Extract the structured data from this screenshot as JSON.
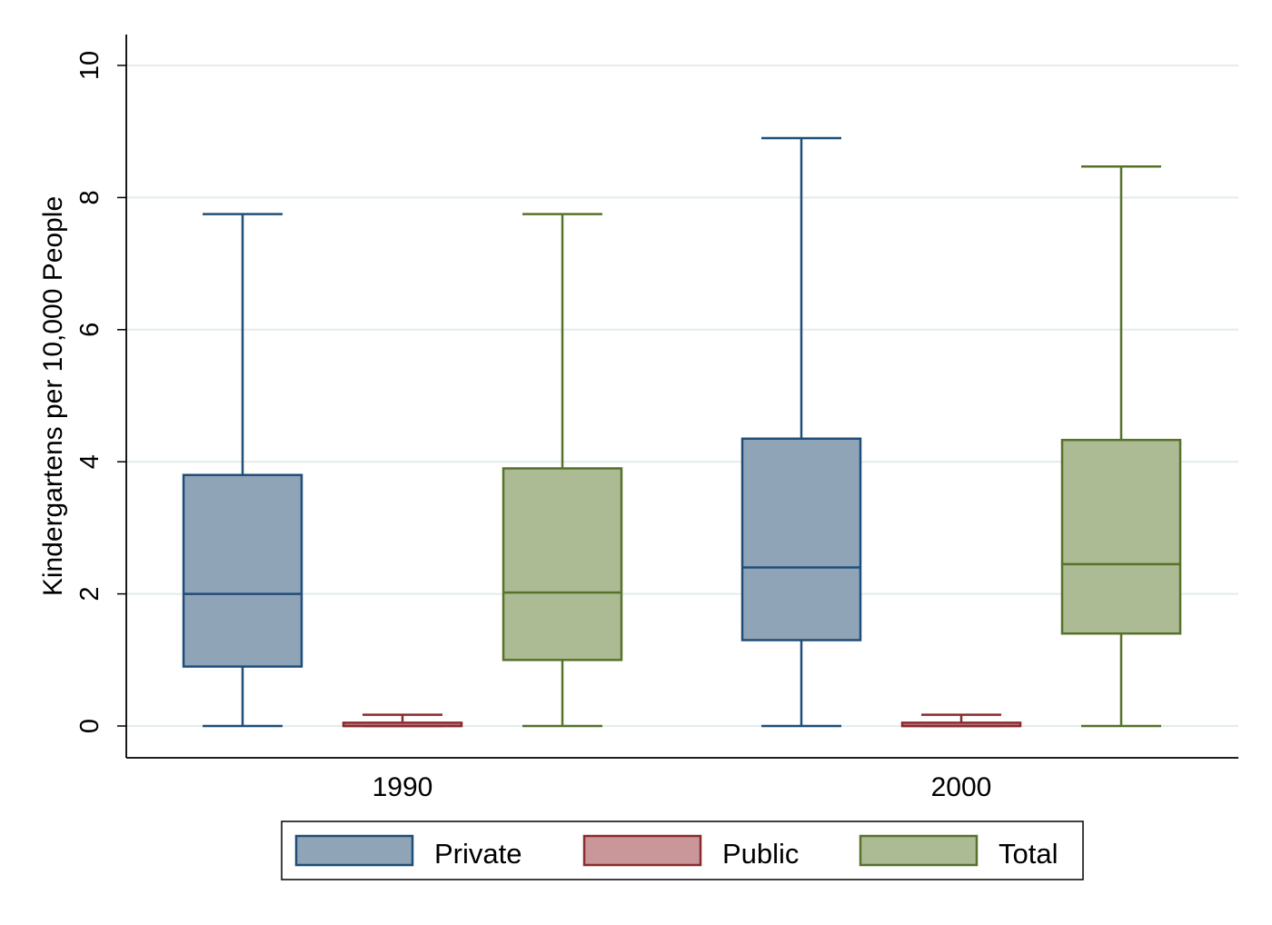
{
  "chart_data": {
    "type": "box",
    "ylabel": "Kindergartens per 10,000 People",
    "ylim": [
      0,
      10
    ],
    "yticks": [
      0,
      2,
      4,
      6,
      8,
      10
    ],
    "ytick_labels": [
      "0",
      "2",
      "4",
      "6",
      "8",
      "10"
    ],
    "grid": true,
    "legend_position": "bottom",
    "categories": [
      "1990",
      "2000"
    ],
    "series": [
      {
        "name": "Private",
        "fill": "#90a4b8",
        "stroke": "#1f4e79",
        "boxes": [
          {
            "category": "1990",
            "min": 0,
            "q1": 0.9,
            "median": 2.0,
            "q3": 3.8,
            "max": 7.75
          },
          {
            "category": "2000",
            "min": 0,
            "q1": 1.3,
            "median": 2.4,
            "q3": 4.35,
            "max": 8.9
          }
        ]
      },
      {
        "name": "Public",
        "fill": "#c9979a",
        "stroke": "#8b2b2e",
        "boxes": [
          {
            "category": "1990",
            "min": 0,
            "q1": 0.0,
            "median": 0.0,
            "q3": 0.05,
            "max": 0.17
          },
          {
            "category": "2000",
            "min": 0,
            "q1": 0.0,
            "median": 0.0,
            "q3": 0.05,
            "max": 0.17
          }
        ]
      },
      {
        "name": "Total",
        "fill": "#adbb94",
        "stroke": "#56722b",
        "boxes": [
          {
            "category": "1990",
            "min": 0,
            "q1": 1.0,
            "median": 2.02,
            "q3": 3.9,
            "max": 7.75
          },
          {
            "category": "2000",
            "min": 0,
            "q1": 1.4,
            "median": 2.45,
            "q3": 4.33,
            "max": 8.47
          }
        ]
      }
    ]
  }
}
